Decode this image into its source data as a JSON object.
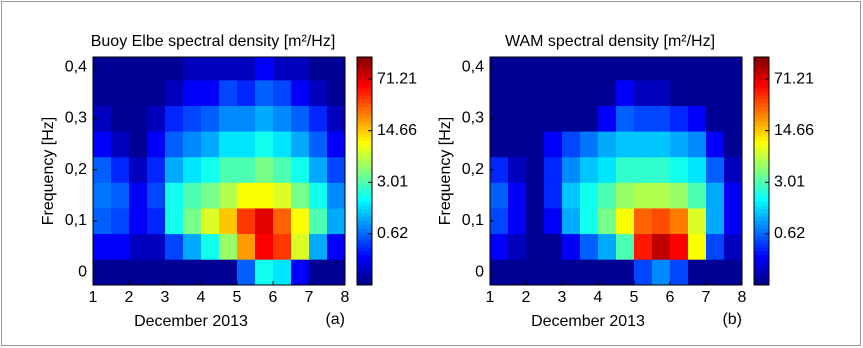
{
  "chart_data": [
    {
      "type": "heatmap",
      "title": "Buoy Elbe spectral density [m²/Hz]",
      "xlabel": "December 2013",
      "ylabel": "Frequency [Hz]",
      "panel_label": "(a)",
      "xlim": [
        1,
        8
      ],
      "ylim": [
        -0.025,
        0.42
      ],
      "xticks": [
        1,
        2,
        3,
        4,
        5,
        6,
        7,
        8
      ],
      "yticks": [
        0,
        {
          "value": 0.1,
          "label": "0,1"
        },
        {
          "value": 0.2,
          "label": "0,2"
        },
        {
          "value": 0.3,
          "label": "0,3"
        },
        {
          "value": 0.4,
          "label": "0,4"
        }
      ],
      "x_bins": [
        1,
        1.5,
        2,
        2.5,
        3,
        3.5,
        4,
        4.5,
        5,
        5.5,
        6,
        6.5,
        7,
        7.5,
        8
      ],
      "y_bins": [
        -0.025,
        0.025,
        0.075,
        0.125,
        0.175,
        0.225,
        0.275,
        0.325,
        0.375,
        0.42
      ],
      "values": [
        [
          0.15,
          0.15,
          0.15,
          0.15,
          0.15,
          0.15,
          0.15,
          0.15,
          0.6,
          2,
          1.5,
          0.3,
          0.15,
          0.15
        ],
        [
          0.3,
          0.3,
          0.2,
          0.2,
          0.5,
          1,
          2,
          5,
          20,
          60,
          40,
          8,
          1,
          0.3
        ],
        [
          0.6,
          0.5,
          0.3,
          0.4,
          2,
          4,
          8,
          15,
          40,
          70,
          30,
          10,
          3,
          1
        ],
        [
          0.7,
          0.6,
          0.3,
          0.5,
          2,
          3,
          4,
          6,
          10,
          10,
          8,
          4,
          2,
          0.8
        ],
        [
          0.6,
          0.4,
          0.2,
          0.4,
          1,
          1.5,
          2,
          3,
          3,
          4,
          3,
          2,
          1,
          0.5
        ],
        [
          0.3,
          0.2,
          0.15,
          0.3,
          0.6,
          0.8,
          1,
          1.5,
          1.5,
          2,
          1.5,
          1,
          0.6,
          0.3
        ],
        [
          0.2,
          0.15,
          0.15,
          0.2,
          0.4,
          0.5,
          0.6,
          0.8,
          0.8,
          1,
          0.8,
          0.6,
          0.4,
          0.2
        ],
        [
          0.15,
          0.15,
          0.15,
          0.15,
          0.2,
          0.3,
          0.3,
          0.5,
          0.4,
          0.6,
          0.5,
          0.3,
          0.2,
          0.15
        ],
        [
          0.15,
          0.15,
          0.15,
          0.15,
          0.15,
          0.2,
          0.2,
          0.2,
          0.2,
          0.3,
          0.2,
          0.2,
          0.15,
          0.15
        ]
      ],
      "colormap": "jet",
      "zlog": true,
      "zlim": [
        0.13,
        140
      ],
      "zticks": [
        0.62,
        3.01,
        14.66,
        71.21
      ]
    },
    {
      "type": "heatmap",
      "title": "WAM spectral density [m²/Hz]",
      "xlabel": "December 2013",
      "ylabel": "Frequency [Hz]",
      "panel_label": "(b)",
      "xlim": [
        1,
        8
      ],
      "ylim": [
        -0.025,
        0.42
      ],
      "xticks": [
        1,
        2,
        3,
        4,
        5,
        6,
        7,
        8
      ],
      "yticks": [
        0,
        {
          "value": 0.1,
          "label": "0,1"
        },
        {
          "value": 0.2,
          "label": "0,2"
        },
        {
          "value": 0.3,
          "label": "0,3"
        },
        {
          "value": 0.4,
          "label": "0,4"
        }
      ],
      "x_bins": [
        1,
        1.5,
        2,
        2.5,
        3,
        3.5,
        4,
        4.5,
        5,
        5.5,
        6,
        6.5,
        7,
        7.5,
        8
      ],
      "y_bins": [
        -0.025,
        0.025,
        0.075,
        0.125,
        0.175,
        0.225,
        0.275,
        0.325,
        0.375,
        0.42
      ],
      "values": [
        [
          0.15,
          0.15,
          0.15,
          0.15,
          0.15,
          0.15,
          0.15,
          0.15,
          0.5,
          0.8,
          0.5,
          0.15,
          0.15,
          0.15
        ],
        [
          0.3,
          0.2,
          0.15,
          0.15,
          0.3,
          0.6,
          1,
          3,
          50,
          90,
          60,
          10,
          0.5,
          0.2
        ],
        [
          0.5,
          0.3,
          0.15,
          0.3,
          1,
          2,
          4,
          10,
          30,
          35,
          25,
          8,
          1,
          0.3
        ],
        [
          0.6,
          0.3,
          0.15,
          0.4,
          1.2,
          2,
          3,
          5,
          6,
          6,
          5,
          3,
          1,
          0.3
        ],
        [
          0.4,
          0.2,
          0.15,
          0.4,
          0.8,
          1.2,
          1.5,
          2.5,
          2.5,
          2.5,
          2,
          1.5,
          0.6,
          0.2
        ],
        [
          0.15,
          0.15,
          0.15,
          0.3,
          0.5,
          0.7,
          1,
          1.2,
          1.2,
          1.2,
          1,
          0.8,
          0.3,
          0.15
        ],
        [
          0.15,
          0.15,
          0.15,
          0.15,
          0.15,
          0.15,
          0.3,
          0.6,
          0.5,
          0.5,
          0.4,
          0.3,
          0.15,
          0.15
        ],
        [
          0.15,
          0.15,
          0.15,
          0.15,
          0.15,
          0.15,
          0.15,
          0.3,
          0.2,
          0.2,
          0.15,
          0.15,
          0.15,
          0.15
        ],
        [
          0.15,
          0.15,
          0.15,
          0.15,
          0.15,
          0.15,
          0.15,
          0.15,
          0.15,
          0.15,
          0.15,
          0.15,
          0.15,
          0.15
        ]
      ],
      "colormap": "jet",
      "zlog": true,
      "zlim": [
        0.13,
        140
      ],
      "zticks": [
        0.62,
        3.01,
        14.66,
        71.21
      ]
    }
  ]
}
